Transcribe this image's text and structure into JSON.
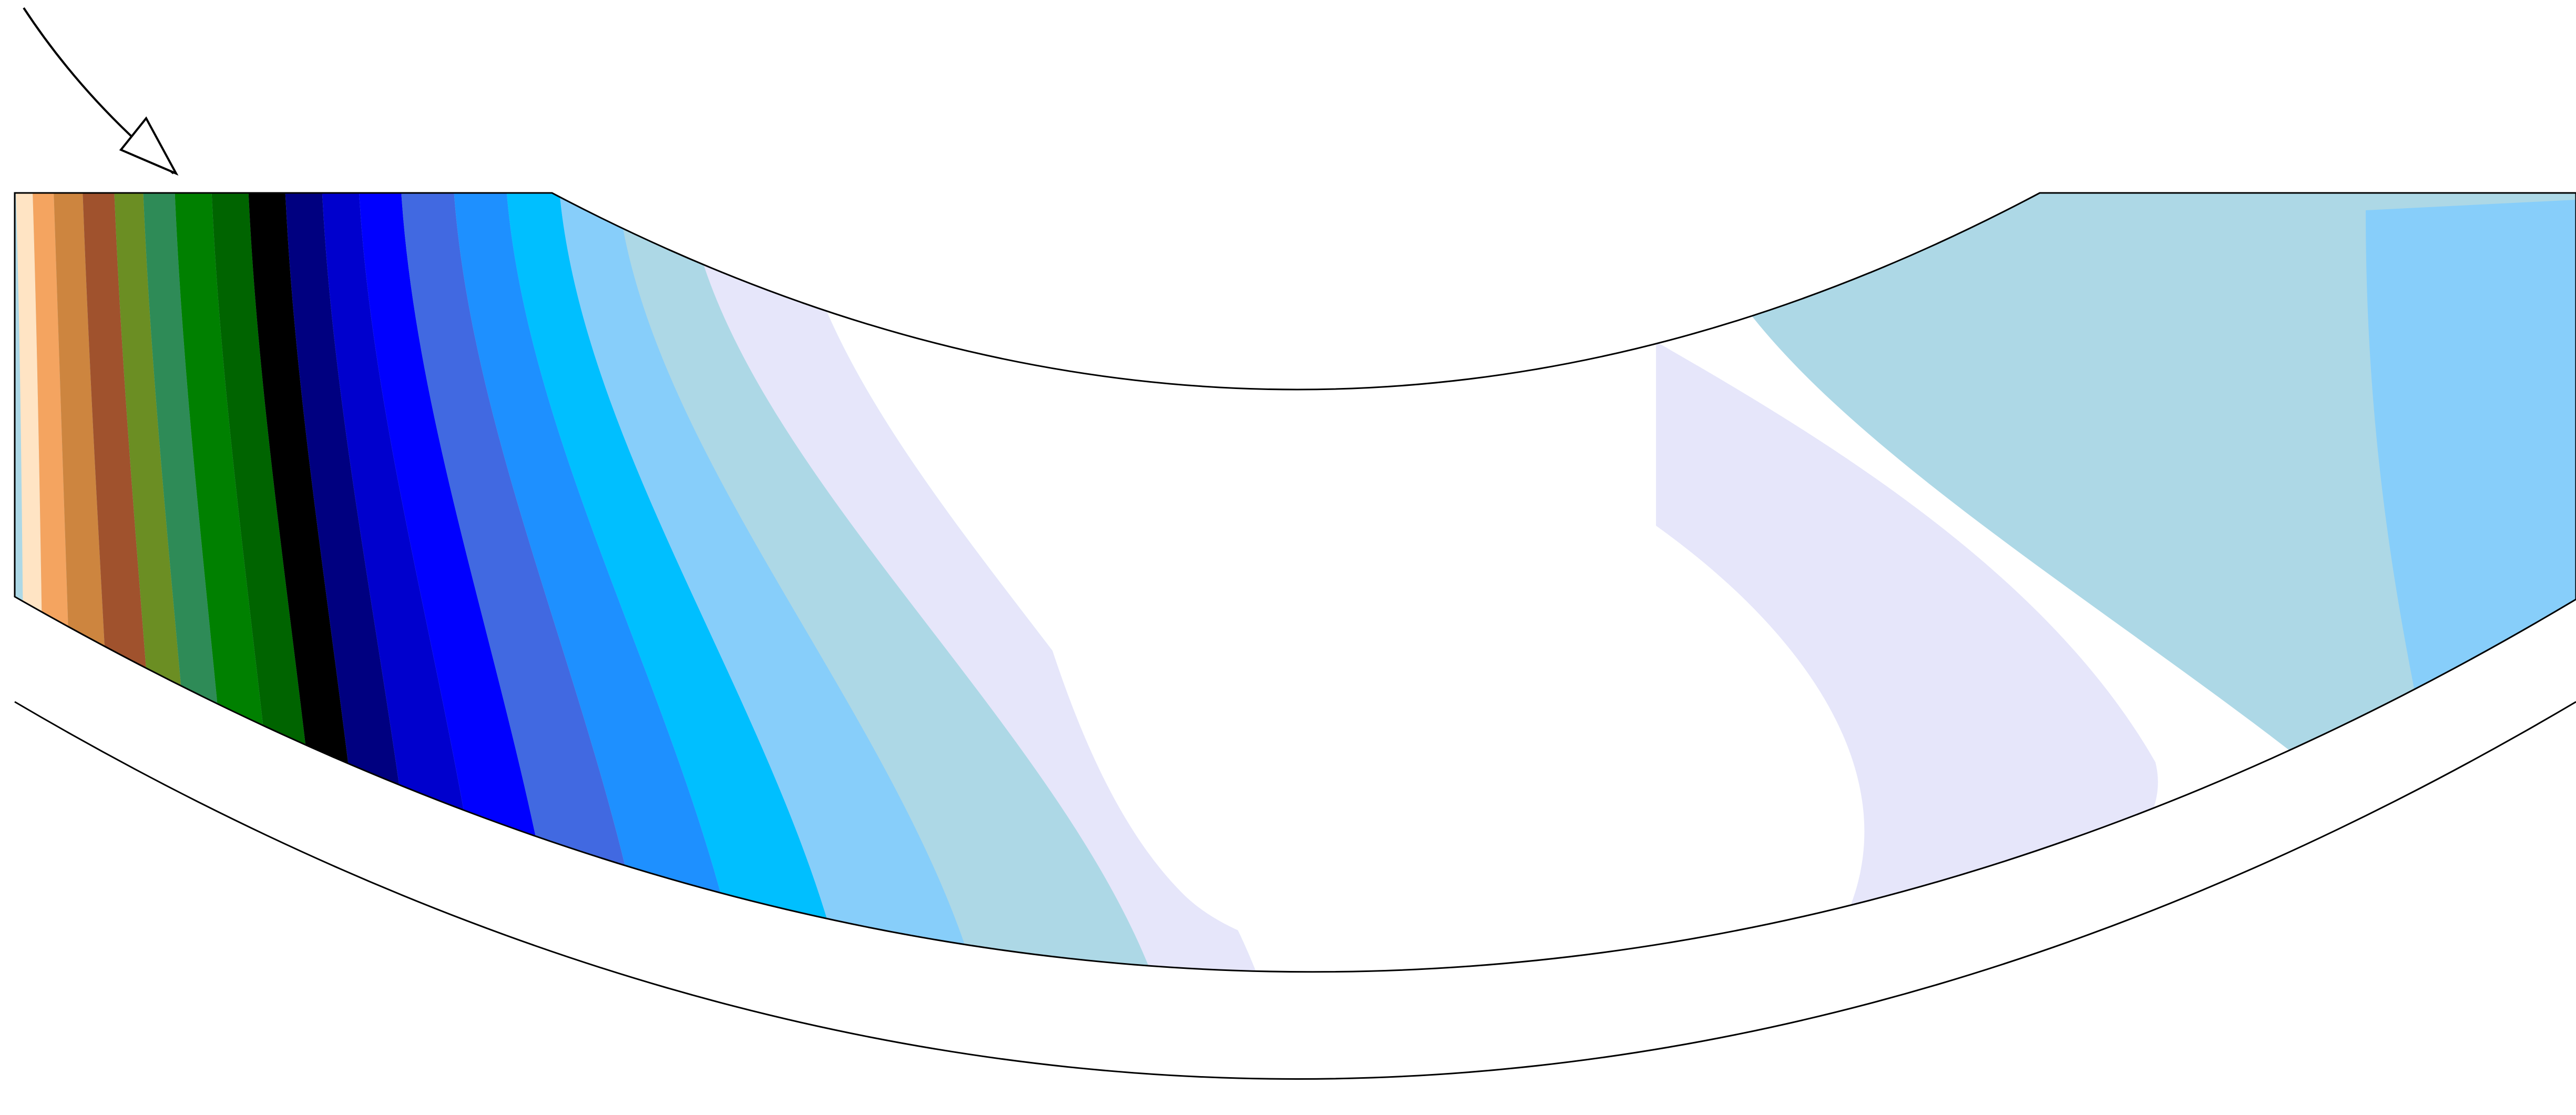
{
  "figure": {
    "kind": "contour-field",
    "palette": {
      "band_colors": [
        "#FFE4C4",
        "#F4A460",
        "#CD853F",
        "#A0522D",
        "#6B8E23",
        "#2E8B57",
        "#008000",
        "#006400",
        "#000000",
        "#000080",
        "#0000CD",
        "#0000FF",
        "#4169E1",
        "#1E90FF",
        "#00BFFF",
        "#87CEFA",
        "#ADD8E6",
        "#E6E6FA",
        "#FFFFFF"
      ],
      "right_region_color": "#ADD8E6",
      "right_edge_color": "#87CEFA",
      "outline_color": "#000000",
      "background": "#FFFFFF"
    },
    "icons": [
      "inflow-arrow-icon"
    ]
  }
}
